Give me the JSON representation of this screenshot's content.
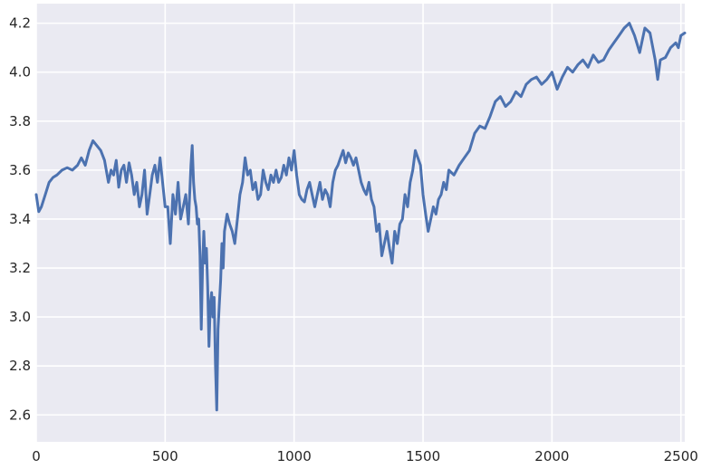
{
  "chart_data": {
    "type": "line",
    "title": "",
    "xlabel": "",
    "ylabel": "",
    "xlim": [
      0,
      2515
    ],
    "ylim": [
      2.49,
      4.28
    ],
    "grid": true,
    "colors": {
      "background": "#EAEAF2",
      "grid": "#FFFFFF",
      "line": "#4C72B0",
      "text": "#262626"
    },
    "x_ticks": [
      {
        "value": 0,
        "label": "0"
      },
      {
        "value": 500,
        "label": "500"
      },
      {
        "value": 1000,
        "label": "1000"
      },
      {
        "value": 1500,
        "label": "1500"
      },
      {
        "value": 2000,
        "label": "2000"
      },
      {
        "value": 2500,
        "label": "2500"
      }
    ],
    "y_ticks": [
      {
        "value": 2.6,
        "label": "2.6"
      },
      {
        "value": 2.8,
        "label": "2.8"
      },
      {
        "value": 3.0,
        "label": "3.0"
      },
      {
        "value": 3.2,
        "label": "3.2"
      },
      {
        "value": 3.4,
        "label": "3.4"
      },
      {
        "value": 3.6,
        "label": "3.6"
      },
      {
        "value": 3.8,
        "label": "3.8"
      },
      {
        "value": 4.0,
        "label": "4.0"
      },
      {
        "value": 4.2,
        "label": "4.2"
      }
    ],
    "series": [
      {
        "x": [
          0,
          10,
          20,
          35,
          50,
          65,
          80,
          100,
          120,
          140,
          160,
          175,
          190,
          205,
          220,
          235,
          250,
          265,
          280,
          290,
          300,
          310,
          320,
          330,
          340,
          350,
          360,
          370,
          380,
          390,
          400,
          410,
          420,
          430,
          440,
          450,
          460,
          470,
          480,
          490,
          500,
          510,
          520,
          530,
          540,
          550,
          560,
          570,
          580,
          590,
          600,
          605,
          610,
          615,
          620,
          625,
          630,
          635,
          640,
          645,
          650,
          655,
          660,
          665,
          670,
          675,
          680,
          685,
          690,
          695,
          700,
          705,
          710,
          715,
          720,
          725,
          730,
          740,
          750,
          760,
          770,
          780,
          790,
          800,
          810,
          820,
          830,
          840,
          850,
          860,
          870,
          880,
          890,
          900,
          910,
          920,
          930,
          940,
          950,
          960,
          970,
          980,
          990,
          1000,
          1010,
          1020,
          1030,
          1040,
          1050,
          1060,
          1070,
          1080,
          1090,
          1100,
          1110,
          1120,
          1130,
          1140,
          1150,
          1160,
          1170,
          1180,
          1190,
          1200,
          1210,
          1220,
          1230,
          1240,
          1250,
          1260,
          1270,
          1280,
          1290,
          1300,
          1310,
          1320,
          1330,
          1340,
          1350,
          1360,
          1370,
          1380,
          1390,
          1400,
          1410,
          1420,
          1430,
          1440,
          1450,
          1460,
          1470,
          1480,
          1490,
          1500,
          1510,
          1520,
          1530,
          1540,
          1550,
          1560,
          1570,
          1580,
          1590,
          1600,
          1620,
          1640,
          1660,
          1680,
          1700,
          1720,
          1740,
          1760,
          1780,
          1800,
          1820,
          1840,
          1860,
          1880,
          1900,
          1920,
          1940,
          1960,
          1980,
          2000,
          2020,
          2040,
          2060,
          2080,
          2100,
          2120,
          2140,
          2160,
          2180,
          2200,
          2220,
          2240,
          2260,
          2280,
          2300,
          2320,
          2340,
          2360,
          2380,
          2400,
          2410,
          2420,
          2440,
          2460,
          2480,
          2490,
          2500,
          2515
        ],
        "y": [
          3.5,
          3.43,
          3.45,
          3.5,
          3.55,
          3.57,
          3.58,
          3.6,
          3.61,
          3.6,
          3.62,
          3.65,
          3.62,
          3.68,
          3.72,
          3.7,
          3.68,
          3.64,
          3.55,
          3.6,
          3.58,
          3.64,
          3.53,
          3.6,
          3.62,
          3.55,
          3.63,
          3.58,
          3.5,
          3.55,
          3.45,
          3.5,
          3.6,
          3.42,
          3.5,
          3.58,
          3.62,
          3.55,
          3.65,
          3.55,
          3.45,
          3.45,
          3.3,
          3.5,
          3.42,
          3.55,
          3.4,
          3.45,
          3.5,
          3.38,
          3.62,
          3.7,
          3.55,
          3.48,
          3.45,
          3.38,
          3.4,
          3.25,
          2.95,
          3.2,
          3.35,
          3.22,
          3.28,
          3.12,
          2.88,
          3.05,
          3.1,
          3.0,
          3.08,
          2.8,
          2.62,
          2.95,
          3.05,
          3.15,
          3.3,
          3.2,
          3.35,
          3.42,
          3.38,
          3.35,
          3.3,
          3.4,
          3.5,
          3.55,
          3.65,
          3.58,
          3.6,
          3.52,
          3.55,
          3.48,
          3.5,
          3.6,
          3.55,
          3.52,
          3.58,
          3.55,
          3.6,
          3.55,
          3.57,
          3.62,
          3.58,
          3.65,
          3.6,
          3.68,
          3.58,
          3.5,
          3.48,
          3.47,
          3.52,
          3.55,
          3.5,
          3.45,
          3.5,
          3.55,
          3.48,
          3.52,
          3.5,
          3.45,
          3.55,
          3.6,
          3.62,
          3.65,
          3.68,
          3.63,
          3.67,
          3.65,
          3.62,
          3.65,
          3.6,
          3.55,
          3.52,
          3.5,
          3.55,
          3.48,
          3.45,
          3.35,
          3.38,
          3.25,
          3.3,
          3.35,
          3.28,
          3.22,
          3.35,
          3.3,
          3.38,
          3.4,
          3.5,
          3.45,
          3.55,
          3.6,
          3.68,
          3.65,
          3.62,
          3.5,
          3.42,
          3.35,
          3.4,
          3.45,
          3.42,
          3.48,
          3.5,
          3.55,
          3.52,
          3.6,
          3.58,
          3.62,
          3.65,
          3.68,
          3.75,
          3.78,
          3.77,
          3.82,
          3.88,
          3.9,
          3.86,
          3.88,
          3.92,
          3.9,
          3.95,
          3.97,
          3.98,
          3.95,
          3.97,
          4.0,
          3.93,
          3.98,
          4.02,
          4.0,
          4.03,
          4.05,
          4.02,
          4.07,
          4.04,
          4.05,
          4.09,
          4.12,
          4.15,
          4.18,
          4.2,
          4.15,
          4.08,
          4.18,
          4.16,
          4.05,
          3.97,
          4.05,
          4.06,
          4.1,
          4.12,
          4.1,
          4.15,
          4.16
        ]
      }
    ]
  }
}
